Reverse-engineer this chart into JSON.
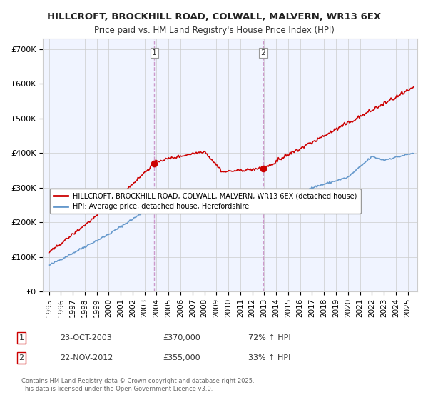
{
  "title": "HILLCROFT, BROCKHILL ROAD, COLWALL, MALVERN, WR13 6EX",
  "subtitle": "Price paid vs. HM Land Registry's House Price Index (HPI)",
  "ylabel_ticks": [
    "£0",
    "£100K",
    "£200K",
    "£300K",
    "£400K",
    "£500K",
    "£600K",
    "£700K"
  ],
  "ytick_vals": [
    0,
    100000,
    200000,
    300000,
    400000,
    500000,
    600000,
    700000
  ],
  "ylim": [
    0,
    730000
  ],
  "xlim_start": 1994.5,
  "xlim_end": 2025.8,
  "xticks": [
    1995,
    1996,
    1997,
    1998,
    1999,
    2000,
    2001,
    2002,
    2003,
    2004,
    2005,
    2006,
    2007,
    2008,
    2009,
    2010,
    2011,
    2012,
    2013,
    2014,
    2015,
    2016,
    2017,
    2018,
    2019,
    2020,
    2021,
    2022,
    2023,
    2024,
    2025
  ],
  "hpi_color": "#6699cc",
  "price_color": "#cc0000",
  "sale1_x": 2003.81,
  "sale1_y": 370000,
  "sale1_label": "1",
  "sale2_x": 2012.9,
  "sale2_y": 355000,
  "sale2_label": "2",
  "vline_color": "#cc99cc",
  "vline_style": "--",
  "legend_line1": "HILLCROFT, BROCKHILL ROAD, COLWALL, MALVERN, WR13 6EX (detached house)",
  "legend_line2": "HPI: Average price, detached house, Herefordshire",
  "annotation1_num": "1",
  "annotation1_date": "23-OCT-2003",
  "annotation1_price": "£370,000",
  "annotation1_hpi": "72% ↑ HPI",
  "annotation2_num": "2",
  "annotation2_date": "22-NOV-2012",
  "annotation2_price": "£355,000",
  "annotation2_hpi": "33% ↑ HPI",
  "footer": "Contains HM Land Registry data © Crown copyright and database right 2025.\nThis data is licensed under the Open Government Licence v3.0.",
  "bg_color": "#ffffff",
  "plot_bg_color": "#f0f4ff",
  "grid_color": "#cccccc"
}
